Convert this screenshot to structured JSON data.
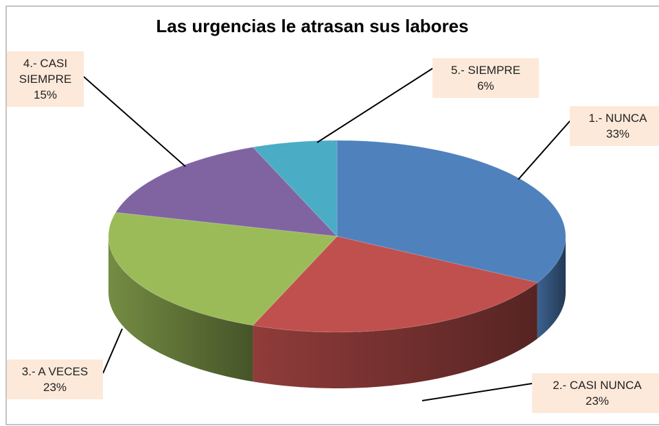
{
  "chart_data": {
    "type": "pie",
    "title": "Las urgencias le atrasan sus labores",
    "categories": [
      "1.- NUNCA",
      "2.- CASI NUNCA",
      "3.- A VECES",
      "4.- CASI SIEMPRE",
      "5.- SIEMPRE"
    ],
    "values": [
      33,
      23,
      23,
      15,
      6
    ],
    "value_labels": [
      "33%",
      "23%",
      "23%",
      "15%",
      "6%"
    ],
    "colors": [
      "#4f81bd",
      "#c0504d",
      "#9bbb59",
      "#8064a2",
      "#4bacc6"
    ]
  }
}
